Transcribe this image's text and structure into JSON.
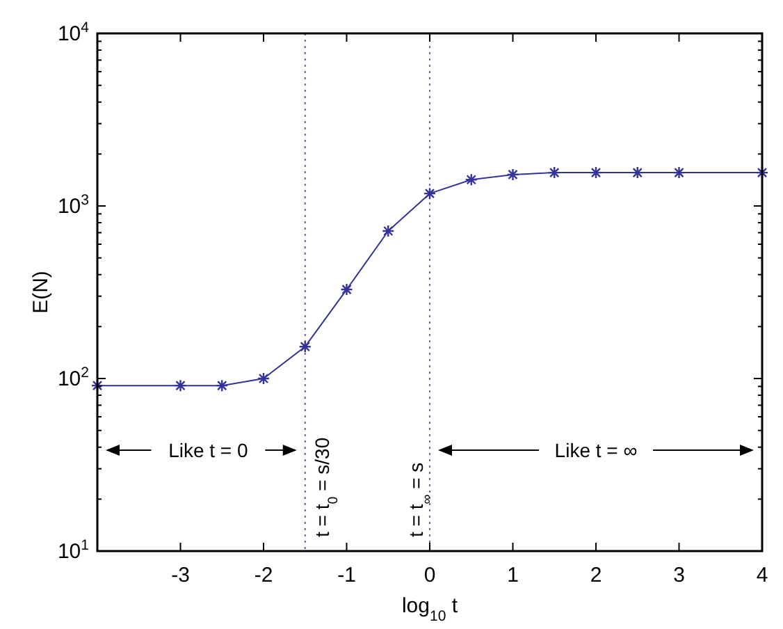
{
  "chart_data": {
    "type": "line",
    "xlabel": "log$_{10}$ t",
    "ylabel": "E(N)",
    "log": "y",
    "marker": "cross",
    "line_style": "solid",
    "xlim": [
      -4,
      4
    ],
    "xticks": [
      -3,
      -2,
      -1,
      0,
      1,
      2,
      3,
      4
    ],
    "ylim": [
      10,
      10000
    ],
    "yticks": [
      {
        "value": 10,
        "label": "10$^{1}$"
      },
      {
        "value": 100,
        "label": "10$^{2}$"
      },
      {
        "value": 1000,
        "label": "10$^{3}$"
      },
      {
        "value": 10000,
        "label": "10$^{4}$"
      }
    ],
    "series": [
      {
        "color": "#333399",
        "x": [
          -4,
          -3,
          -2.5,
          -2,
          -1.5,
          -1,
          -0.5,
          0,
          0.5,
          1,
          1.5,
          2,
          2.5,
          3,
          4
        ],
        "values": [
          91,
          91,
          91,
          100,
          153,
          328,
          716,
          1180,
          1420,
          1520,
          1560,
          1560,
          1560,
          1560,
          1560
        ]
      }
    ],
    "ref_lines": [
      {
        "axis": "x",
        "value": -1.5,
        "label": "t = t$_{0}$ = s/30",
        "color": "#6666aa",
        "line_style": "dotted"
      },
      {
        "axis": "x",
        "value": 0,
        "label": "t = t$_{∞}$ = s",
        "color": "#6666aa",
        "line_style": "dotted"
      }
    ],
    "annotations": [
      "Like t = 0",
      "Like t = ∞"
    ]
  }
}
